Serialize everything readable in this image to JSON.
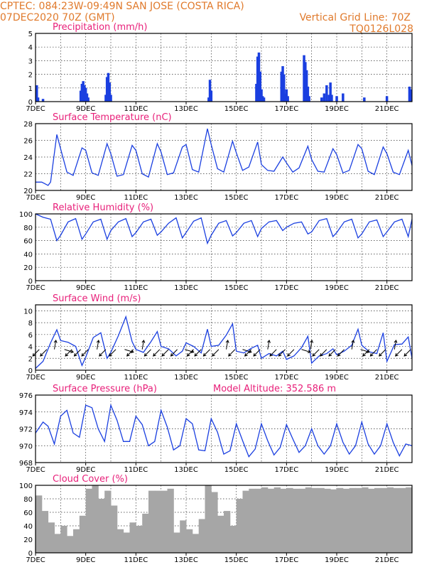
{
  "header": {
    "left_line1": "CPTEC:   084:23W-09:49N   SAN JOSE (COSTA RICA)",
    "left_line2": "07DEC2020 70Z (GMT)",
    "right_line1": "Vertical Grid Line: 70Z",
    "right_line2": "TQ0126L028"
  },
  "colors": {
    "header": "#e07a2c",
    "title": "#e8207a",
    "series": "#1a3fe0",
    "cloud": "#a6a6a6"
  },
  "x_axis": {
    "days": [
      7,
      8,
      9,
      10,
      11,
      12,
      13,
      14,
      15,
      16,
      17,
      18,
      19,
      20,
      21,
      22
    ],
    "tick_labels": [
      {
        "day": 7,
        "label": "7DEC"
      },
      {
        "day": 9,
        "label": "9DEC"
      },
      {
        "day": 11,
        "label": "11DEC"
      },
      {
        "day": 13,
        "label": "13DEC"
      },
      {
        "day": 15,
        "label": "15DEC"
      },
      {
        "day": 17,
        "label": "17DEC"
      },
      {
        "day": 19,
        "label": "19DEC"
      },
      {
        "day": 21,
        "label": "21DEC"
      }
    ],
    "xlim": [
      7,
      22
    ]
  },
  "chart_data": [
    {
      "type": "bar",
      "title": "Precipitation (mm/h)",
      "ylim": [
        0,
        5
      ],
      "yticks": [
        0,
        1,
        2,
        3,
        4,
        5
      ],
      "x": [
        7.05,
        7.1,
        7.3,
        8.8,
        8.85,
        8.9,
        8.95,
        9.0,
        9.05,
        9.1,
        9.8,
        9.85,
        9.9,
        9.95,
        10.0,
        13.9,
        13.95,
        14.0,
        15.8,
        15.85,
        15.9,
        15.95,
        16.0,
        16.05,
        16.1,
        16.8,
        16.85,
        16.9,
        16.95,
        17.0,
        17.05,
        17.7,
        17.75,
        17.8,
        17.85,
        17.9,
        18.4,
        18.5,
        18.6,
        18.7,
        18.75,
        18.8,
        19.0,
        19.25,
        20.1,
        21.0,
        21.9,
        21.95
      ],
      "values": [
        1.2,
        0.3,
        0.2,
        0.8,
        1.3,
        1.5,
        1.2,
        1.0,
        0.6,
        0.3,
        0.5,
        1.8,
        2.1,
        1.4,
        0.5,
        0.3,
        1.6,
        0.8,
        1.3,
        3.3,
        3.6,
        2.2,
        0.9,
        0.4,
        0.3,
        2.2,
        2.6,
        2.0,
        0.6,
        0.9,
        0.4,
        3.4,
        2.9,
        2.3,
        1.1,
        0.4,
        0.3,
        0.6,
        1.2,
        0.5,
        1.4,
        0.5,
        0.4,
        0.6,
        0.3,
        0.4,
        1.1,
        0.9
      ]
    },
    {
      "type": "line",
      "title": "Surface Temperature (nC)",
      "ylim": [
        20,
        28
      ],
      "yticks": [
        20,
        22,
        24,
        26,
        28
      ],
      "x": [
        7.0,
        7.25,
        7.5,
        7.6,
        7.85,
        8.0,
        8.25,
        8.5,
        8.85,
        9.0,
        9.25,
        9.5,
        9.85,
        10.0,
        10.25,
        10.5,
        10.85,
        11.0,
        11.25,
        11.5,
        11.85,
        12.0,
        12.25,
        12.5,
        12.85,
        13.0,
        13.25,
        13.5,
        13.85,
        14.0,
        14.25,
        14.5,
        14.85,
        15.0,
        15.25,
        15.5,
        15.85,
        16.0,
        16.25,
        16.5,
        16.85,
        17.0,
        17.25,
        17.5,
        17.85,
        18.0,
        18.25,
        18.5,
        18.85,
        19.0,
        19.25,
        19.5,
        19.85,
        20.0,
        20.25,
        20.5,
        20.85,
        21.0,
        21.25,
        21.5,
        21.85,
        22.0
      ],
      "values": [
        21.0,
        21.0,
        20.6,
        21.0,
        26.7,
        25.0,
        22.2,
        21.8,
        25.1,
        24.8,
        22.1,
        21.8,
        25.6,
        24.4,
        21.7,
        21.9,
        25.4,
        24.8,
        22.0,
        21.6,
        25.6,
        24.6,
        21.9,
        22.1,
        25.2,
        25.5,
        22.5,
        22.2,
        27.4,
        25.5,
        22.6,
        22.2,
        25.9,
        24.5,
        22.4,
        22.8,
        25.8,
        23.1,
        22.4,
        22.3,
        24.0,
        23.3,
        22.2,
        22.7,
        25.3,
        23.7,
        22.3,
        22.2,
        25.0,
        24.3,
        22.1,
        22.4,
        25.5,
        25.0,
        22.3,
        21.9,
        25.2,
        24.4,
        22.2,
        21.9,
        24.8,
        23.0
      ]
    },
    {
      "type": "line",
      "title": "Relative Humidity (%)",
      "ylim": [
        0,
        100
      ],
      "yticks": [
        0,
        20,
        40,
        60,
        80,
        100
      ],
      "x": [
        7.0,
        7.3,
        7.6,
        7.85,
        8.0,
        8.3,
        8.6,
        8.85,
        9.0,
        9.3,
        9.6,
        9.85,
        10.0,
        10.3,
        10.6,
        10.85,
        11.0,
        11.3,
        11.6,
        11.85,
        12.0,
        12.3,
        12.6,
        12.85,
        13.0,
        13.3,
        13.6,
        13.85,
        14.0,
        14.3,
        14.6,
        14.85,
        15.0,
        15.3,
        15.6,
        15.85,
        16.0,
        16.3,
        16.6,
        16.85,
        17.0,
        17.3,
        17.6,
        17.85,
        18.0,
        18.3,
        18.6,
        18.85,
        19.0,
        19.3,
        19.6,
        19.85,
        20.0,
        20.3,
        20.6,
        20.85,
        21.0,
        21.3,
        21.6,
        21.85,
        22.0
      ],
      "values": [
        100,
        95,
        92,
        60,
        68,
        88,
        93,
        62,
        70,
        88,
        92,
        62,
        75,
        88,
        93,
        66,
        72,
        88,
        92,
        68,
        73,
        86,
        94,
        64,
        72,
        89,
        94,
        56,
        68,
        86,
        90,
        67,
        72,
        86,
        90,
        66,
        78,
        88,
        90,
        75,
        80,
        86,
        88,
        70,
        73,
        90,
        93,
        66,
        72,
        88,
        92,
        64,
        70,
        88,
        91,
        66,
        73,
        88,
        92,
        66,
        92
      ]
    },
    {
      "type": "line",
      "title": "Surface Wind (m/s)",
      "ylim": [
        0,
        11
      ],
      "yticks": [
        0,
        2,
        4,
        6,
        8,
        10
      ],
      "x": [
        7.0,
        7.3,
        7.6,
        7.85,
        8.0,
        8.3,
        8.6,
        8.85,
        9.0,
        9.3,
        9.6,
        9.85,
        10.0,
        10.3,
        10.6,
        10.85,
        11.0,
        11.3,
        11.6,
        11.85,
        12.0,
        12.3,
        12.6,
        12.85,
        13.0,
        13.3,
        13.6,
        13.85,
        14.0,
        14.3,
        14.6,
        14.85,
        15.0,
        15.3,
        15.6,
        15.85,
        16.0,
        16.3,
        16.6,
        16.85,
        17.0,
        17.3,
        17.6,
        17.85,
        18.0,
        18.3,
        18.6,
        18.85,
        19.0,
        19.3,
        19.6,
        19.85,
        20.0,
        20.3,
        20.6,
        20.85,
        21.0,
        21.3,
        21.6,
        21.85,
        22.0
      ],
      "values": [
        0.3,
        1.5,
        4.6,
        6.8,
        5.0,
        4.7,
        4.0,
        0.8,
        2.2,
        5.5,
        6.3,
        2.0,
        3.0,
        5.8,
        9.0,
        4.8,
        3.5,
        3.0,
        4.8,
        6.5,
        4.0,
        3.6,
        2.4,
        3.2,
        4.6,
        4.0,
        2.9,
        6.9,
        4.0,
        4.2,
        5.9,
        7.8,
        3.2,
        2.9,
        3.7,
        4.2,
        2.0,
        2.8,
        2.4,
        3.2,
        1.8,
        2.4,
        3.8,
        5.7,
        1.2,
        2.4,
        2.8,
        3.6,
        2.6,
        3.2,
        4.2,
        6.9,
        4.2,
        3.1,
        2.8,
        6.3,
        1.5,
        4.3,
        4.4,
        5.6,
        2.0
      ]
    },
    {
      "type": "line",
      "title": "Surface Pressure (hPa)",
      "annotation": "Model Altitude: 352.586 m",
      "ylim": [
        968,
        976
      ],
      "yticks": [
        968,
        970,
        972,
        974,
        976
      ],
      "x": [
        7.0,
        7.3,
        7.5,
        7.75,
        8.0,
        8.25,
        8.5,
        8.75,
        9.0,
        9.25,
        9.5,
        9.75,
        10.0,
        10.25,
        10.5,
        10.75,
        11.0,
        11.25,
        11.5,
        11.75,
        12.0,
        12.25,
        12.5,
        12.75,
        13.0,
        13.25,
        13.5,
        13.75,
        14.0,
        14.25,
        14.5,
        14.75,
        15.0,
        15.25,
        15.5,
        15.75,
        16.0,
        16.25,
        16.5,
        16.75,
        17.0,
        17.25,
        17.5,
        17.75,
        18.0,
        18.25,
        18.5,
        18.75,
        19.0,
        19.25,
        19.5,
        19.75,
        20.0,
        20.25,
        20.5,
        20.75,
        21.0,
        21.25,
        21.5,
        21.75,
        22.0
      ],
      "values": [
        971.5,
        972.8,
        972.3,
        970.2,
        973.5,
        974.2,
        971.5,
        971.0,
        974.8,
        974.5,
        972.0,
        970.5,
        974.8,
        973.0,
        970.5,
        970.5,
        973.5,
        972.5,
        970.0,
        970.5,
        974.2,
        972.2,
        969.5,
        970.0,
        973.2,
        972.6,
        969.5,
        969.4,
        973.2,
        971.6,
        969.0,
        969.4,
        972.6,
        970.6,
        968.7,
        969.6,
        972.6,
        970.6,
        968.9,
        969.8,
        972.5,
        970.8,
        969.2,
        970.0,
        972.0,
        970.0,
        969.0,
        970.0,
        972.6,
        970.4,
        969.0,
        970.0,
        972.8,
        970.2,
        969.0,
        970.0,
        972.6,
        970.4,
        968.8,
        970.2,
        970.0
      ]
    },
    {
      "type": "bar",
      "title": "Cloud Cover (%)",
      "ylim": [
        0,
        100
      ],
      "yticks": [
        0,
        20,
        40,
        60,
        80,
        100
      ],
      "x": [
        7.0,
        7.25,
        7.5,
        7.75,
        8.0,
        8.25,
        8.5,
        8.75,
        9.0,
        9.25,
        9.5,
        9.75,
        10.0,
        10.25,
        10.5,
        10.75,
        11.0,
        11.25,
        11.5,
        11.75,
        12.0,
        12.25,
        12.5,
        12.75,
        13.0,
        13.25,
        13.5,
        13.75,
        14.0,
        14.25,
        14.5,
        14.75,
        15.0,
        15.25,
        15.5,
        15.75,
        16.0,
        16.25,
        16.5,
        16.75,
        17.0,
        17.25,
        17.5,
        17.75,
        18.0,
        18.25,
        18.5,
        18.75,
        19.0,
        19.25,
        19.5,
        19.75,
        20.0,
        20.25,
        20.5,
        20.75,
        21.0,
        21.25,
        21.5,
        21.75
      ],
      "values": [
        85,
        62,
        45,
        28,
        40,
        25,
        35,
        55,
        95,
        100,
        80,
        92,
        70,
        35,
        30,
        45,
        40,
        58,
        92,
        92,
        92,
        95,
        30,
        48,
        35,
        28,
        50,
        100,
        90,
        55,
        62,
        40,
        80,
        92,
        95,
        95,
        97,
        95,
        97,
        95,
        96,
        95,
        95,
        97,
        96,
        96,
        95,
        94,
        96,
        95,
        96,
        96,
        97,
        95,
        96,
        96,
        97,
        96,
        96,
        97
      ]
    }
  ]
}
